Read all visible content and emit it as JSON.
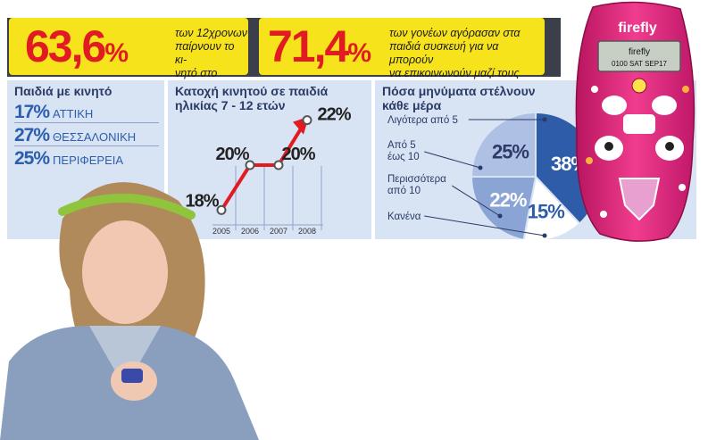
{
  "header": {
    "stat1": {
      "value": "63,6",
      "pct": "%",
      "line1": "των 12χρονων",
      "line2": "παίρνουν το κι-",
      "line3": "νητό στο σχολείο"
    },
    "stat2": {
      "value": "71,4",
      "pct": "%",
      "line1": "των γονέων αγόρασαν στα",
      "line2": "παιδιά συσκευή για να μπορούν",
      "line3": "να επικοινωνούν μαζί τους"
    }
  },
  "panel1": {
    "title": "Παιδιά με κινητό",
    "rows": [
      {
        "value": "17%",
        "label": "ΑΤΤΙΚΗ"
      },
      {
        "value": "27%",
        "label": "ΘΕΣΣΑΛΟΝΙΚΗ"
      },
      {
        "value": "25%",
        "label": "ΠΕΡΙΦΕΡΕΙΑ"
      }
    ]
  },
  "chart_data": [
    {
      "type": "line",
      "title": "Κατοχή κινητού σε παιδιά ηλικίας 7 - 12 ετών",
      "title_line1": "Κατοχή κινητού σε παιδιά",
      "title_line2": "ηλικίας 7 - 12 ετών",
      "x": [
        "2005",
        "2006",
        "2007",
        "2008"
      ],
      "points": [
        {
          "x": 2005,
          "y": 18,
          "label": "18%"
        },
        {
          "x": 2006,
          "y": 20,
          "label": "20%"
        },
        {
          "x": 2007,
          "y": 20,
          "label": "20%"
        },
        {
          "x": 2008,
          "y": 22,
          "label": "22%"
        }
      ],
      "ylim": [
        17.5,
        22.5
      ],
      "grid": true,
      "colors": {
        "line": "#e11b22",
        "marker": "#ffffff"
      }
    },
    {
      "type": "pie",
      "title": "Πόσα μηνύματα στέλνουν κάθε μέρα",
      "title_line1": "Πόσα μηνύματα στέλνουν",
      "title_line2": "κάθε μέρα",
      "slices": [
        {
          "name": "Λιγότερα από 5",
          "value": 38,
          "label": "38%",
          "color": "#2f5ca8"
        },
        {
          "name": "Κανένα",
          "value": 15,
          "label": "15%",
          "color": "#ffffff"
        },
        {
          "name": "Περισσότερα από 10",
          "value": 22,
          "label": "22%",
          "color": "#8aa4d6"
        },
        {
          "name": "Από 5 έως 10",
          "value": 25,
          "label": "25%",
          "color": "#aec0e4"
        }
      ],
      "legend": [
        {
          "line1": "Λιγότερα από 5",
          "line2": ""
        },
        {
          "line1": "Από 5",
          "line2": "έως 10"
        },
        {
          "line1": "Περισσότερα",
          "line2": "από 10"
        },
        {
          "line1": "Κανένα",
          "line2": ""
        }
      ]
    }
  ],
  "phone": {
    "brand": "firefly",
    "screen_brand": "firefly",
    "screen_line": "0100  SAT  SEP17"
  }
}
